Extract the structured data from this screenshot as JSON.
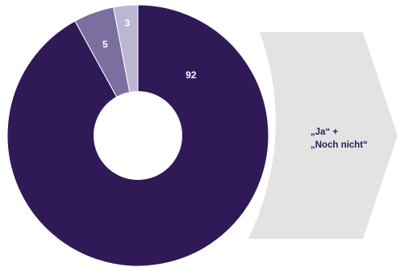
{
  "chart_data": {
    "type": "pie",
    "variant": "donut",
    "categories": [
      "",
      "",
      ""
    ],
    "values": [
      92,
      5,
      3
    ],
    "labels": [
      "92",
      "5",
      "3"
    ],
    "colors": [
      "#2f1a57",
      "#7b6f9f",
      "#bcb6d3"
    ],
    "start_angle": "12 o'clock",
    "direction": "clockwise",
    "title": "",
    "legend": "none"
  },
  "callout": {
    "line1": "„Ja“ +",
    "line2": "„Noch nicht“",
    "fill_color": "#e3e3e3",
    "text_color": "#2b1b52"
  }
}
